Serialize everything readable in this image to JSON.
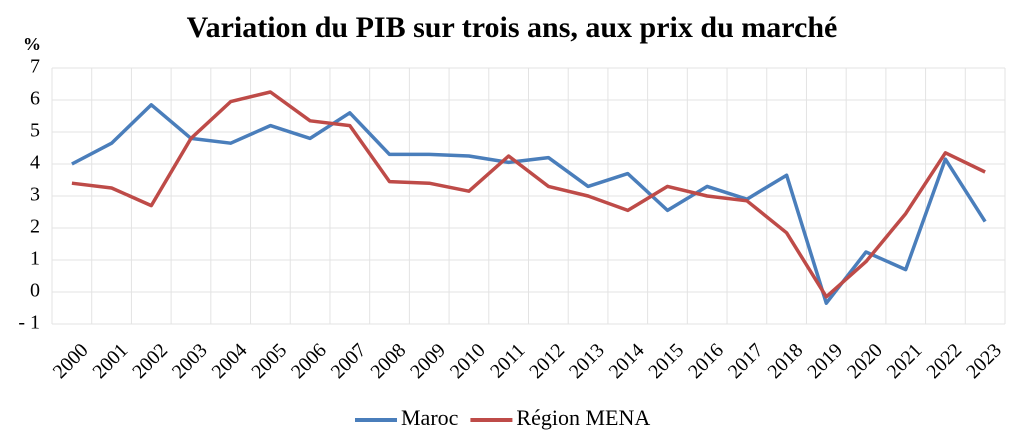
{
  "chart_data": {
    "type": "line",
    "title": "Variation du PIB sur trois ans, aux prix du marché",
    "y_label": "%",
    "categories": [
      "2000",
      "2001",
      "2002",
      "2003",
      "2004",
      "2005",
      "2006",
      "2007",
      "2008",
      "2009",
      "2010",
      "2011",
      "2012",
      "2013",
      "2014",
      "2015",
      "2016",
      "2017",
      "2018",
      "2019",
      "2020",
      "2021",
      "2022",
      "2023"
    ],
    "series": [
      {
        "name": "Maroc",
        "color": "#4a7ebb",
        "values": [
          4.0,
          4.65,
          5.85,
          4.8,
          4.65,
          5.2,
          4.8,
          5.6,
          4.3,
          4.3,
          4.25,
          4.05,
          4.2,
          3.3,
          3.7,
          2.55,
          3.3,
          2.9,
          3.65,
          -0.35,
          1.25,
          0.7,
          4.15,
          2.2
        ]
      },
      {
        "name": "Région MENA",
        "color": "#be4b48",
        "values": [
          3.4,
          3.25,
          2.7,
          4.8,
          5.95,
          6.25,
          5.35,
          5.2,
          3.45,
          3.4,
          3.15,
          4.25,
          3.3,
          3.0,
          2.55,
          3.3,
          3.0,
          2.85,
          1.85,
          -0.15,
          0.95,
          2.45,
          4.35,
          3.75
        ]
      }
    ],
    "ylim": [
      -1,
      7
    ],
    "yticks": [
      {
        "value": -1,
        "label": "- 1"
      },
      0,
      1,
      2,
      3,
      4,
      5,
      6,
      7
    ],
    "grid": true,
    "legend": "bottom"
  }
}
